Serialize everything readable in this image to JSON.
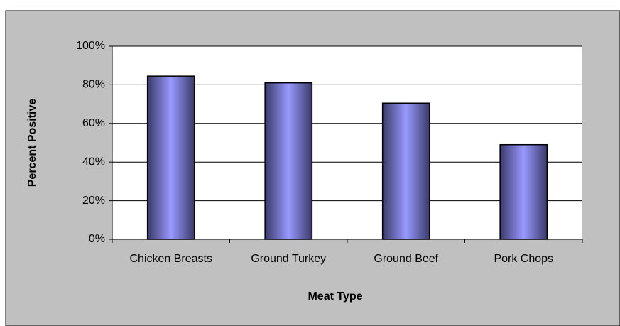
{
  "chart_data": {
    "type": "bar",
    "x_label": "Meat Type",
    "y_label": "Percent Positive",
    "categories": [
      "Chicken Breasts",
      "Ground Turkey",
      "Ground Beef",
      "Pork Chops"
    ],
    "values": [
      84.5,
      81,
      70.5,
      49
    ],
    "color": "#9999ff",
    "ylim": [
      0,
      100
    ],
    "yticks": [
      {
        "value": 0,
        "label": "0%"
      },
      {
        "value": 20,
        "label": "20%"
      },
      {
        "value": 40,
        "label": "40%"
      },
      {
        "value": 60,
        "label": "60%"
      },
      {
        "value": 80,
        "label": "80%"
      },
      {
        "value": 100,
        "label": "100%"
      }
    ],
    "grid": true
  }
}
